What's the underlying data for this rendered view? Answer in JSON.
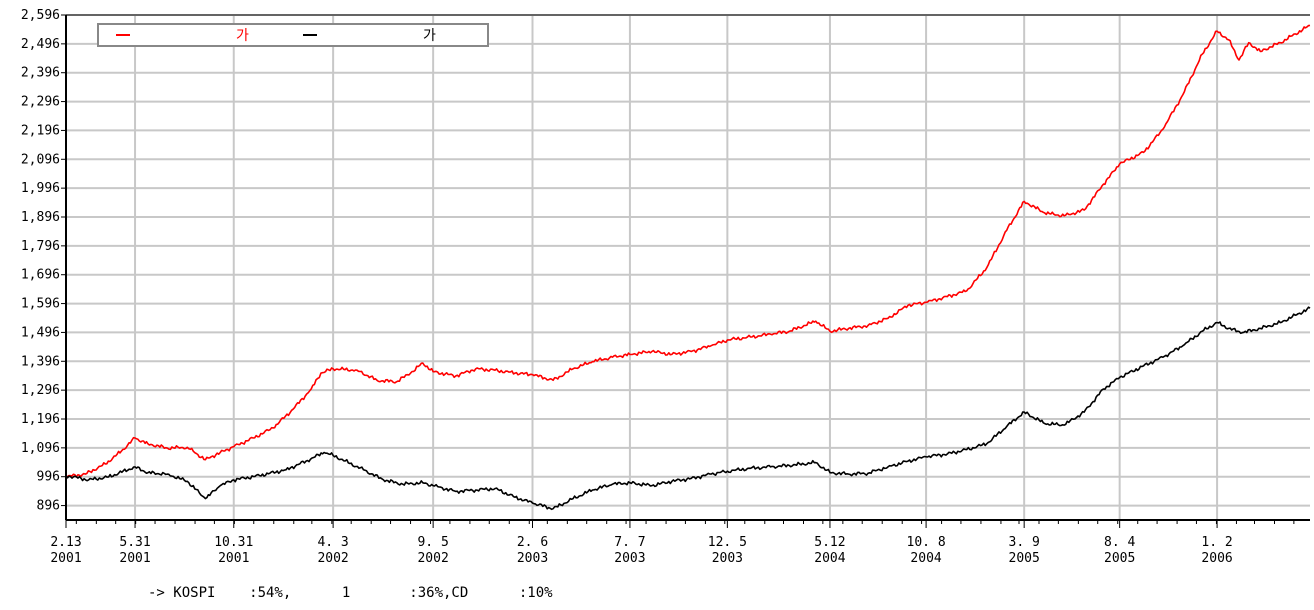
{
  "chart_data": {
    "type": "line",
    "title": "",
    "xlabel": "",
    "ylabel": "",
    "ylim": [
      846,
      2596
    ],
    "grid": true,
    "legend_position": "top-left",
    "y_ticks": [
      2596,
      2496,
      2396,
      2296,
      2196,
      2096,
      1996,
      1896,
      1796,
      1696,
      1596,
      1496,
      1396,
      1296,
      1196,
      1096,
      996,
      896
    ],
    "y_tick_labels": [
      "2,596",
      "2,496",
      "2,396",
      "2,296",
      "2,196",
      "2,096",
      "1,996",
      "1,896",
      "1,796",
      "1,696",
      "1,596",
      "1,496",
      "1,396",
      "1,296",
      "1,196",
      "1,096",
      "996",
      "896"
    ],
    "x_range": [
      "2001-02-13",
      "2006-05-26"
    ],
    "x_ticks": [
      {
        "date": "2001-02-13",
        "line1": "2.13",
        "line2": "2001"
      },
      {
        "date": "2001-05-31",
        "line1": "5.31",
        "line2": "2001"
      },
      {
        "date": "2001-10-31",
        "line1": "10.31",
        "line2": "2001"
      },
      {
        "date": "2002-04-03",
        "line1": "4. 3",
        "line2": "2002"
      },
      {
        "date": "2002-09-05",
        "line1": "9. 5",
        "line2": "2002"
      },
      {
        "date": "2003-02-06",
        "line1": "2. 6",
        "line2": "2003"
      },
      {
        "date": "2003-07-07",
        "line1": "7. 7",
        "line2": "2003"
      },
      {
        "date": "2003-12-05",
        "line1": "12. 5",
        "line2": "2003"
      },
      {
        "date": "2004-05-12",
        "line1": "5.12",
        "line2": "2004"
      },
      {
        "date": "2004-10-08",
        "line1": "10. 8",
        "line2": "2004"
      },
      {
        "date": "2005-03-09",
        "line1": "3. 9",
        "line2": "2005"
      },
      {
        "date": "2005-08-04",
        "line1": "8. 4",
        "line2": "2005"
      },
      {
        "date": "2006-01-02",
        "line1": "1. 2",
        "line2": "2006"
      }
    ],
    "series": [
      {
        "name": "가",
        "color": "#ff0000",
        "points": [
          [
            "2001-02-13",
            996
          ],
          [
            "2001-03-15",
            1005
          ],
          [
            "2001-04-15",
            1040
          ],
          [
            "2001-05-10",
            1085
          ],
          [
            "2001-05-31",
            1130
          ],
          [
            "2001-06-20",
            1110
          ],
          [
            "2001-07-20",
            1095
          ],
          [
            "2001-08-20",
            1098
          ],
          [
            "2001-09-17",
            1055
          ],
          [
            "2001-10-10",
            1080
          ],
          [
            "2001-10-31",
            1100
          ],
          [
            "2001-11-30",
            1130
          ],
          [
            "2001-12-31",
            1165
          ],
          [
            "2002-01-31",
            1230
          ],
          [
            "2002-02-28",
            1300
          ],
          [
            "2002-03-15",
            1355
          ],
          [
            "2002-04-03",
            1370
          ],
          [
            "2002-05-10",
            1365
          ],
          [
            "2002-06-10",
            1330
          ],
          [
            "2002-07-10",
            1325
          ],
          [
            "2002-08-01",
            1355
          ],
          [
            "2002-08-20",
            1390
          ],
          [
            "2002-09-05",
            1360
          ],
          [
            "2002-10-10",
            1345
          ],
          [
            "2002-11-10",
            1370
          ],
          [
            "2002-12-10",
            1365
          ],
          [
            "2003-01-10",
            1355
          ],
          [
            "2003-02-06",
            1350
          ],
          [
            "2003-03-10",
            1330
          ],
          [
            "2003-04-10",
            1370
          ],
          [
            "2003-05-10",
            1395
          ],
          [
            "2003-06-10",
            1410
          ],
          [
            "2003-07-07",
            1420
          ],
          [
            "2003-08-10",
            1430
          ],
          [
            "2003-09-10",
            1420
          ],
          [
            "2003-10-10",
            1430
          ],
          [
            "2003-11-10",
            1450
          ],
          [
            "2003-12-05",
            1470
          ],
          [
            "2004-01-10",
            1480
          ],
          [
            "2004-02-10",
            1490
          ],
          [
            "2004-03-10",
            1500
          ],
          [
            "2004-04-20",
            1535
          ],
          [
            "2004-05-12",
            1500
          ],
          [
            "2004-06-10",
            1510
          ],
          [
            "2004-07-10",
            1520
          ],
          [
            "2004-08-10",
            1545
          ],
          [
            "2004-09-10",
            1590
          ],
          [
            "2004-10-08",
            1600
          ],
          [
            "2004-11-10",
            1620
          ],
          [
            "2004-12-10",
            1640
          ],
          [
            "2005-01-10",
            1720
          ],
          [
            "2005-02-10",
            1850
          ],
          [
            "2005-03-09",
            1950
          ],
          [
            "2005-04-10",
            1910
          ],
          [
            "2005-05-10",
            1900
          ],
          [
            "2005-06-10",
            1920
          ],
          [
            "2005-07-10",
            2010
          ],
          [
            "2005-08-04",
            2080
          ],
          [
            "2005-09-10",
            2120
          ],
          [
            "2005-10-10",
            2200
          ],
          [
            "2005-11-10",
            2320
          ],
          [
            "2005-12-10",
            2460
          ],
          [
            "2006-01-02",
            2540
          ],
          [
            "2006-01-20",
            2510
          ],
          [
            "2006-02-05",
            2440
          ],
          [
            "2006-02-20",
            2500
          ],
          [
            "2006-03-10",
            2470
          ],
          [
            "2006-04-10",
            2500
          ],
          [
            "2006-05-26",
            2560
          ]
        ]
      },
      {
        "name": "가",
        "color": "#000000",
        "points": [
          [
            "2001-02-13",
            1000
          ],
          [
            "2001-03-20",
            985
          ],
          [
            "2001-04-20",
            995
          ],
          [
            "2001-05-31",
            1030
          ],
          [
            "2001-06-20",
            1010
          ],
          [
            "2001-07-20",
            1005
          ],
          [
            "2001-08-20",
            980
          ],
          [
            "2001-09-17",
            920
          ],
          [
            "2001-10-10",
            965
          ],
          [
            "2001-10-31",
            985
          ],
          [
            "2001-12-10",
            1000
          ],
          [
            "2002-01-20",
            1020
          ],
          [
            "2002-02-20",
            1050
          ],
          [
            "2002-03-20",
            1080
          ],
          [
            "2002-04-03",
            1070
          ],
          [
            "2002-05-20",
            1020
          ],
          [
            "2002-06-20",
            985
          ],
          [
            "2002-07-20",
            970
          ],
          [
            "2002-08-20",
            975
          ],
          [
            "2002-09-05",
            965
          ],
          [
            "2002-10-10",
            945
          ],
          [
            "2002-11-10",
            950
          ],
          [
            "2002-12-10",
            955
          ],
          [
            "2003-01-10",
            925
          ],
          [
            "2003-02-06",
            905
          ],
          [
            "2003-03-10",
            885
          ],
          [
            "2003-04-10",
            920
          ],
          [
            "2003-05-10",
            950
          ],
          [
            "2003-06-10",
            970
          ],
          [
            "2003-07-07",
            975
          ],
          [
            "2003-08-10",
            965
          ],
          [
            "2003-09-10",
            980
          ],
          [
            "2003-10-10",
            990
          ],
          [
            "2003-11-10",
            1005
          ],
          [
            "2003-12-05",
            1015
          ],
          [
            "2004-01-10",
            1025
          ],
          [
            "2004-02-10",
            1030
          ],
          [
            "2004-03-10",
            1035
          ],
          [
            "2004-04-20",
            1045
          ],
          [
            "2004-05-12",
            1010
          ],
          [
            "2004-06-10",
            1005
          ],
          [
            "2004-07-10",
            1008
          ],
          [
            "2004-08-10",
            1030
          ],
          [
            "2004-09-10",
            1050
          ],
          [
            "2004-10-08",
            1065
          ],
          [
            "2004-11-10",
            1075
          ],
          [
            "2004-12-10",
            1090
          ],
          [
            "2005-01-10",
            1110
          ],
          [
            "2005-02-10",
            1170
          ],
          [
            "2005-03-09",
            1220
          ],
          [
            "2005-04-10",
            1180
          ],
          [
            "2005-05-10",
            1175
          ],
          [
            "2005-06-10",
            1220
          ],
          [
            "2005-07-10",
            1300
          ],
          [
            "2005-08-04",
            1340
          ],
          [
            "2005-09-10",
            1380
          ],
          [
            "2005-10-10",
            1410
          ],
          [
            "2005-11-10",
            1450
          ],
          [
            "2005-12-10",
            1500
          ],
          [
            "2006-01-02",
            1530
          ],
          [
            "2006-01-20",
            1510
          ],
          [
            "2006-02-10",
            1495
          ],
          [
            "2006-03-10",
            1510
          ],
          [
            "2006-04-10",
            1530
          ],
          [
            "2006-05-26",
            1580
          ]
        ]
      }
    ]
  },
  "footnote": "-> KOSPI    :54%,      1       :36%,CD      :10%"
}
